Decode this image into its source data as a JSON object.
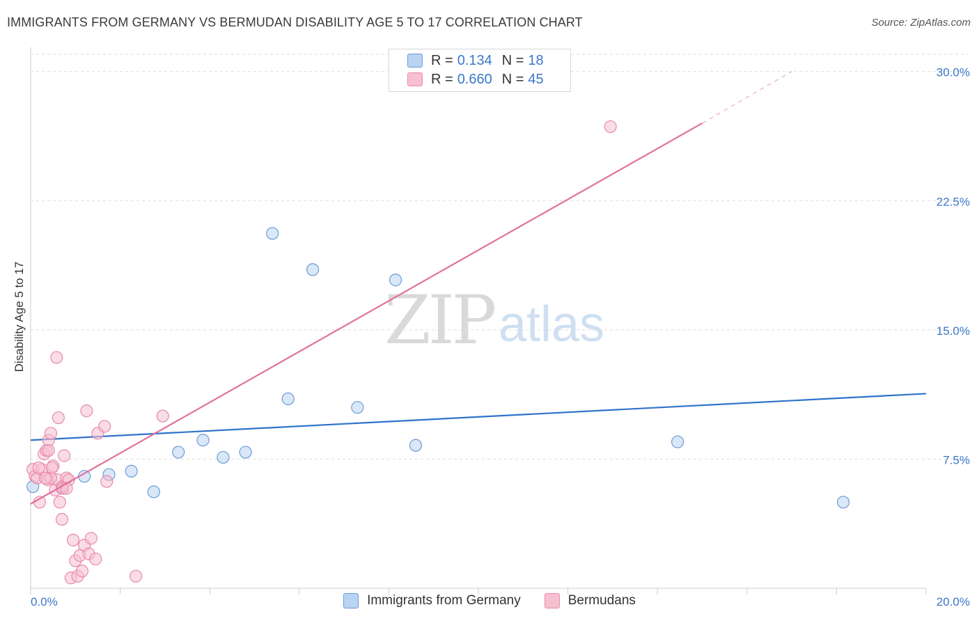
{
  "title": "IMMIGRANTS FROM GERMANY VS BERMUDAN DISABILITY AGE 5 TO 17 CORRELATION CHART",
  "source": "Source: ZipAtlas.com",
  "watermark": {
    "zip": "ZIP",
    "atlas": "atlas"
  },
  "legend_top": [
    {
      "r_label": "R =",
      "r_value": "0.134",
      "n_label": "N =",
      "n_value": "18"
    },
    {
      "r_label": "R =",
      "r_value": "0.660",
      "n_label": "N =",
      "n_value": "45"
    }
  ],
  "legend_bottom": [
    "Immigrants from Germany",
    "Bermudans"
  ],
  "colors": {
    "blue_fill": "#b9d3f3",
    "blue_stroke": "#6b9bd6",
    "blue_line": "#2f72cc",
    "pink_fill": "#f6c0d1",
    "pink_stroke": "#e88aa8",
    "pink_line": "#e0709a",
    "tick_label": "#3a78c8",
    "grid": "#dddddd"
  },
  "chart_data": {
    "type": "scatter",
    "title": "IMMIGRANTS FROM GERMANY VS BERMUDAN DISABILITY AGE 5 TO 17 CORRELATION CHART",
    "xlabel": "",
    "ylabel": "Disability Age 5 to 17",
    "xlim": [
      0,
      20
    ],
    "ylim": [
      0,
      31
    ],
    "x_tick_labels": [
      {
        "value": 0,
        "label": "0.0%"
      },
      {
        "value": 20,
        "label": "20.0%"
      }
    ],
    "x_minor_ticks": [
      0,
      2,
      4,
      6,
      8,
      10,
      12,
      14,
      16,
      18,
      20
    ],
    "y_ticks": [
      {
        "value": 7.5,
        "label": "7.5%"
      },
      {
        "value": 15.0,
        "label": "15.0%"
      },
      {
        "value": 22.5,
        "label": "22.5%"
      },
      {
        "value": 30.0,
        "label": "30.0%"
      }
    ],
    "series": [
      {
        "name": "Immigrants from Germany",
        "color": "blue",
        "points": [
          [
            0.05,
            5.9
          ],
          [
            0.7,
            5.8
          ],
          [
            1.2,
            6.5
          ],
          [
            1.75,
            6.6
          ],
          [
            2.25,
            6.8
          ],
          [
            2.75,
            5.6
          ],
          [
            3.3,
            7.9
          ],
          [
            3.85,
            8.6
          ],
          [
            4.3,
            7.6
          ],
          [
            4.8,
            7.9
          ],
          [
            5.4,
            20.6
          ],
          [
            5.75,
            11.0
          ],
          [
            6.3,
            18.5
          ],
          [
            7.3,
            10.5
          ],
          [
            8.15,
            17.9
          ],
          [
            8.6,
            8.3
          ],
          [
            14.45,
            8.5
          ],
          [
            18.15,
            5.0
          ]
        ],
        "trend": {
          "x0": 0,
          "y0": 8.6,
          "x1": 20,
          "y1": 11.3
        }
      },
      {
        "name": "Bermudans",
        "color": "pink",
        "points": [
          [
            0.05,
            6.9
          ],
          [
            0.1,
            6.5
          ],
          [
            0.15,
            6.4
          ],
          [
            0.2,
            5.0
          ],
          [
            0.25,
            6.9
          ],
          [
            0.3,
            7.8
          ],
          [
            0.35,
            8.0
          ],
          [
            0.4,
            8.6
          ],
          [
            0.45,
            9.0
          ],
          [
            0.5,
            7.1
          ],
          [
            0.55,
            5.7
          ],
          [
            0.6,
            6.3
          ],
          [
            0.65,
            5.0
          ],
          [
            0.7,
            5.9
          ],
          [
            0.75,
            7.7
          ],
          [
            0.8,
            6.4
          ],
          [
            0.85,
            6.3
          ],
          [
            0.9,
            0.6
          ],
          [
            0.95,
            2.8
          ],
          [
            1.0,
            1.6
          ],
          [
            1.05,
            0.7
          ],
          [
            1.1,
            1.9
          ],
          [
            1.15,
            1.0
          ],
          [
            1.2,
            2.5
          ],
          [
            1.25,
            10.3
          ],
          [
            1.3,
            2.0
          ],
          [
            1.35,
            2.9
          ],
          [
            1.45,
            1.7
          ],
          [
            1.5,
            9.0
          ],
          [
            1.65,
            9.4
          ],
          [
            2.35,
            0.7
          ],
          [
            2.95,
            10.0
          ],
          [
            0.38,
            6.3
          ],
          [
            0.58,
            13.4
          ],
          [
            0.45,
            6.4
          ],
          [
            0.72,
            5.8
          ],
          [
            0.33,
            6.4
          ],
          [
            0.4,
            8.0
          ],
          [
            0.18,
            7.0
          ],
          [
            0.62,
            9.9
          ],
          [
            0.48,
            7.0
          ],
          [
            0.7,
            4.0
          ],
          [
            0.8,
            5.8
          ],
          [
            1.7,
            6.2
          ],
          [
            12.95,
            26.8
          ]
        ],
        "trend": {
          "x0": 0,
          "y0": 4.9,
          "x1": 15.0,
          "y1": 27.0
        },
        "trend_dashed": {
          "x0": 15.0,
          "y0": 27.0,
          "x1": 17.0,
          "y1": 30.0
        }
      }
    ]
  }
}
